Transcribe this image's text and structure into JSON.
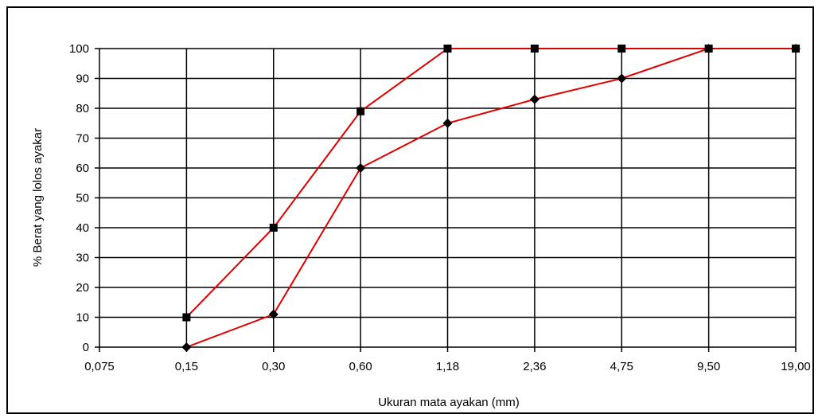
{
  "chart_data": {
    "type": "line",
    "title": "",
    "xlabel": "Ukuran mata ayakan (mm)",
    "ylabel": "% Berat yang lolos ayakar",
    "categories": [
      "0,075",
      "0,15",
      "0,30",
      "0,60",
      "1,18",
      "2,36",
      "4,75",
      "9,50",
      "19,00"
    ],
    "yticks": [
      "0",
      "10",
      "20",
      "30",
      "40",
      "50",
      "60",
      "70",
      "80",
      "90",
      "100"
    ],
    "ylim": [
      0,
      100
    ],
    "grid": true,
    "series": [
      {
        "marker": "square",
        "color": "#e00000",
        "values": [
          null,
          10,
          40,
          79,
          100,
          100,
          100,
          100,
          100
        ]
      },
      {
        "marker": "diamond",
        "color": "#e00000",
        "values": [
          null,
          0,
          11,
          60,
          75,
          83,
          90,
          100,
          100
        ]
      }
    ]
  }
}
